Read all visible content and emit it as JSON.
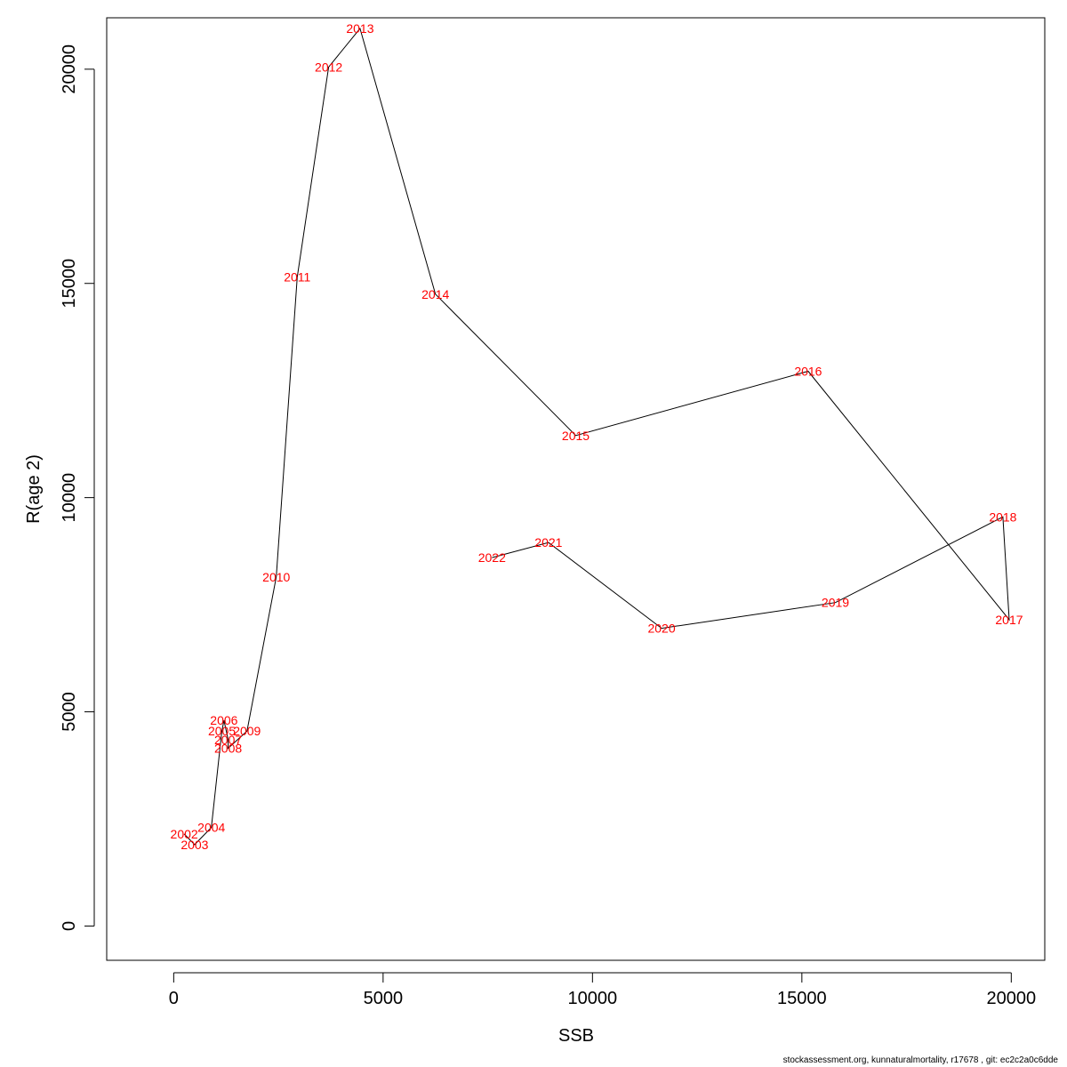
{
  "chart_data": {
    "type": "line",
    "xlabel": "SSB",
    "ylabel": "R(age 2)",
    "xlim": [
      -1600,
      20800
    ],
    "ylim": [
      -800,
      21200
    ],
    "x_ticks": [
      0,
      5000,
      10000,
      15000,
      20000
    ],
    "y_ticks": [
      0,
      5000,
      10000,
      15000,
      20000
    ],
    "grid": false,
    "line_color": "#000000",
    "label_color": "#ff0000",
    "points": [
      {
        "year": "2002",
        "x": 250,
        "y": 2150
      },
      {
        "year": "2003",
        "x": 500,
        "y": 1900
      },
      {
        "year": "2004",
        "x": 900,
        "y": 2300
      },
      {
        "year": "2005",
        "x": 1150,
        "y": 4550
      },
      {
        "year": "2006",
        "x": 1200,
        "y": 4800
      },
      {
        "year": "2007",
        "x": 1300,
        "y": 4350
      },
      {
        "year": "2008",
        "x": 1300,
        "y": 4150
      },
      {
        "year": "2009",
        "x": 1750,
        "y": 4550
      },
      {
        "year": "2010",
        "x": 2450,
        "y": 8150
      },
      {
        "year": "2011",
        "x": 2950,
        "y": 15150
      },
      {
        "year": "2012",
        "x": 3700,
        "y": 20050
      },
      {
        "year": "2013",
        "x": 4450,
        "y": 20950
      },
      {
        "year": "2014",
        "x": 6250,
        "y": 14750
      },
      {
        "year": "2015",
        "x": 9600,
        "y": 11450
      },
      {
        "year": "2016",
        "x": 15150,
        "y": 12950
      },
      {
        "year": "2017",
        "x": 19950,
        "y": 7150
      },
      {
        "year": "2018",
        "x": 19800,
        "y": 9550
      },
      {
        "year": "2019",
        "x": 15800,
        "y": 7550
      },
      {
        "year": "2020",
        "x": 11650,
        "y": 6950
      },
      {
        "year": "2021",
        "x": 8950,
        "y": 8950
      },
      {
        "year": "2022",
        "x": 7600,
        "y": 8600
      }
    ]
  },
  "footer": "stockassessment.org, kunnaturalmortality, r17678 , git: ec2c2a0c6dde"
}
